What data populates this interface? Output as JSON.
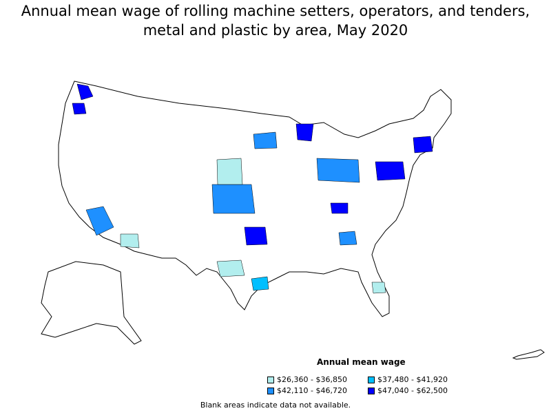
{
  "title": {
    "line1": "Annual mean wage of rolling machine setters, operators, and tenders,",
    "line2": "metal and plastic by area, May 2020"
  },
  "legend": {
    "title": "Annual mean wage",
    "items": [
      {
        "label": "$26,360 - $36,850",
        "color": "#b2eeee"
      },
      {
        "label": "$42,110 - $46,720",
        "color": "#1e90ff"
      },
      {
        "label": "$37,480 - $41,920",
        "color": "#00bfff"
      },
      {
        "label": "$47,040 - $62,500",
        "color": "#0000ff"
      }
    ]
  },
  "footnote": "Blank areas indicate data not available."
}
